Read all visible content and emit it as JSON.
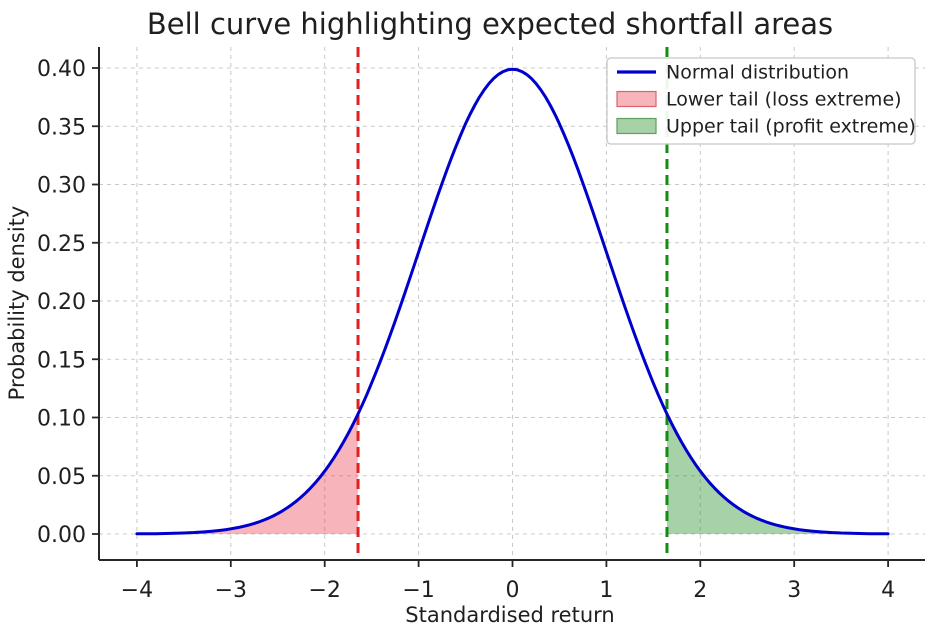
{
  "chart_data": {
    "type": "line",
    "title": "Bell curve highlighting expected shortfall areas",
    "grid": true,
    "legend_position": "upper right",
    "x_axis": {
      "label": "Standardised return",
      "range": [
        -4.4,
        4.4
      ],
      "ticks": [
        {
          "v": -4,
          "label": "−4"
        },
        {
          "v": -3,
          "label": "−3"
        },
        {
          "v": -2,
          "label": "−2"
        },
        {
          "v": -1,
          "label": "−1"
        },
        {
          "v": 0,
          "label": "0"
        },
        {
          "v": 1,
          "label": "1"
        },
        {
          "v": 2,
          "label": "2"
        },
        {
          "v": 3,
          "label": "3"
        },
        {
          "v": 4,
          "label": "4"
        }
      ]
    },
    "y_axis": {
      "label": "Probability density",
      "range": [
        -0.022,
        0.418
      ],
      "ticks": [
        {
          "v": 0.0,
          "label": "0.00"
        },
        {
          "v": 0.05,
          "label": "0.05"
        },
        {
          "v": 0.1,
          "label": "0.10"
        },
        {
          "v": 0.15,
          "label": "0.15"
        },
        {
          "v": 0.2,
          "label": "0.20"
        },
        {
          "v": 0.25,
          "label": "0.25"
        },
        {
          "v": 0.3,
          "label": "0.30"
        },
        {
          "v": 0.35,
          "label": "0.35"
        },
        {
          "v": 0.4,
          "label": "0.40"
        }
      ]
    },
    "series": [
      {
        "name": "Normal distribution",
        "type": "line",
        "color": "#0000cd",
        "line_width": 3,
        "distribution": {
          "shape": "normal_pdf",
          "mean": 0,
          "sigma": 1
        },
        "x_range": [
          -4,
          4
        ],
        "samples": {
          "x": [
            -4,
            -3.5,
            -3,
            -2.5,
            -2,
            -1.645,
            -1.5,
            -1,
            -0.5,
            0,
            0.5,
            1,
            1.5,
            1.645,
            2,
            2.5,
            3,
            3.5,
            4
          ],
          "y": [
            0.00013,
            0.00087,
            0.00443,
            0.01753,
            0.05399,
            0.10311,
            0.12952,
            0.24197,
            0.35207,
            0.39894,
            0.35207,
            0.24197,
            0.12952,
            0.10311,
            0.05399,
            0.01753,
            0.00443,
            0.00087,
            0.00013
          ]
        }
      }
    ],
    "regions": [
      {
        "name": "Lower tail (loss extreme)",
        "from": -4,
        "to": -1.645,
        "fill": "rgba(235,60,75,0.38)"
      },
      {
        "name": "Upper tail (profit extreme)",
        "from": 1.645,
        "to": 4,
        "fill": "rgba(34,139,34,0.40)"
      }
    ],
    "vlines": [
      {
        "x": -1.645,
        "color": "#e01f1f",
        "style": "dashed"
      },
      {
        "x": 1.645,
        "color": "#128c12",
        "style": "dashed"
      }
    ],
    "legend": {
      "items": [
        {
          "label": "Normal distribution",
          "swatch": "line",
          "color": "#0000cd"
        },
        {
          "label": "Lower tail (loss extreme)",
          "swatch": "patch",
          "fill": "rgba(235,60,75,0.38)",
          "edge": "#d9646e"
        },
        {
          "label": "Upper tail (profit extreme)",
          "swatch": "patch",
          "fill": "rgba(34,139,34,0.40)",
          "edge": "#5f9e5f"
        }
      ]
    },
    "colors": {
      "grid": "#c9c9c9",
      "spine": "#262626",
      "text": "#1f1f1f",
      "legend_border": "#c8c8c8",
      "legend_bg": "rgba(255,255,255,0.92)"
    }
  }
}
